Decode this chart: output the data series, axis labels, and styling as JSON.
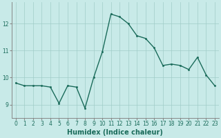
{
  "x": [
    0,
    1,
    2,
    3,
    4,
    5,
    6,
    7,
    8,
    9,
    10,
    11,
    12,
    13,
    14,
    15,
    16,
    17,
    18,
    19,
    20,
    21,
    22,
    23
  ],
  "y": [
    9.8,
    9.7,
    9.7,
    9.7,
    9.65,
    9.05,
    9.7,
    9.65,
    8.87,
    10.0,
    10.95,
    12.35,
    12.25,
    12.0,
    11.55,
    11.45,
    11.1,
    10.45,
    10.5,
    10.45,
    10.3,
    10.75,
    10.1,
    9.7
  ],
  "line_color": "#1a6b5a",
  "marker": "o",
  "markersize": 1.8,
  "linewidth": 1.0,
  "xlabel": "Humidex (Indice chaleur)",
  "xlabel_fontsize": 7,
  "ylim": [
    8.5,
    12.8
  ],
  "xlim": [
    -0.5,
    23.5
  ],
  "yticks": [
    9,
    10,
    11,
    12
  ],
  "xticks": [
    0,
    1,
    2,
    3,
    4,
    5,
    6,
    7,
    8,
    9,
    10,
    11,
    12,
    13,
    14,
    15,
    16,
    17,
    18,
    19,
    20,
    21,
    22,
    23
  ],
  "background_color": "#c8eae8",
  "grid_color": "#a0ccc8",
  "tick_color": "#1a6b5a",
  "tick_fontsize": 5.5,
  "spine_color": "#888888"
}
